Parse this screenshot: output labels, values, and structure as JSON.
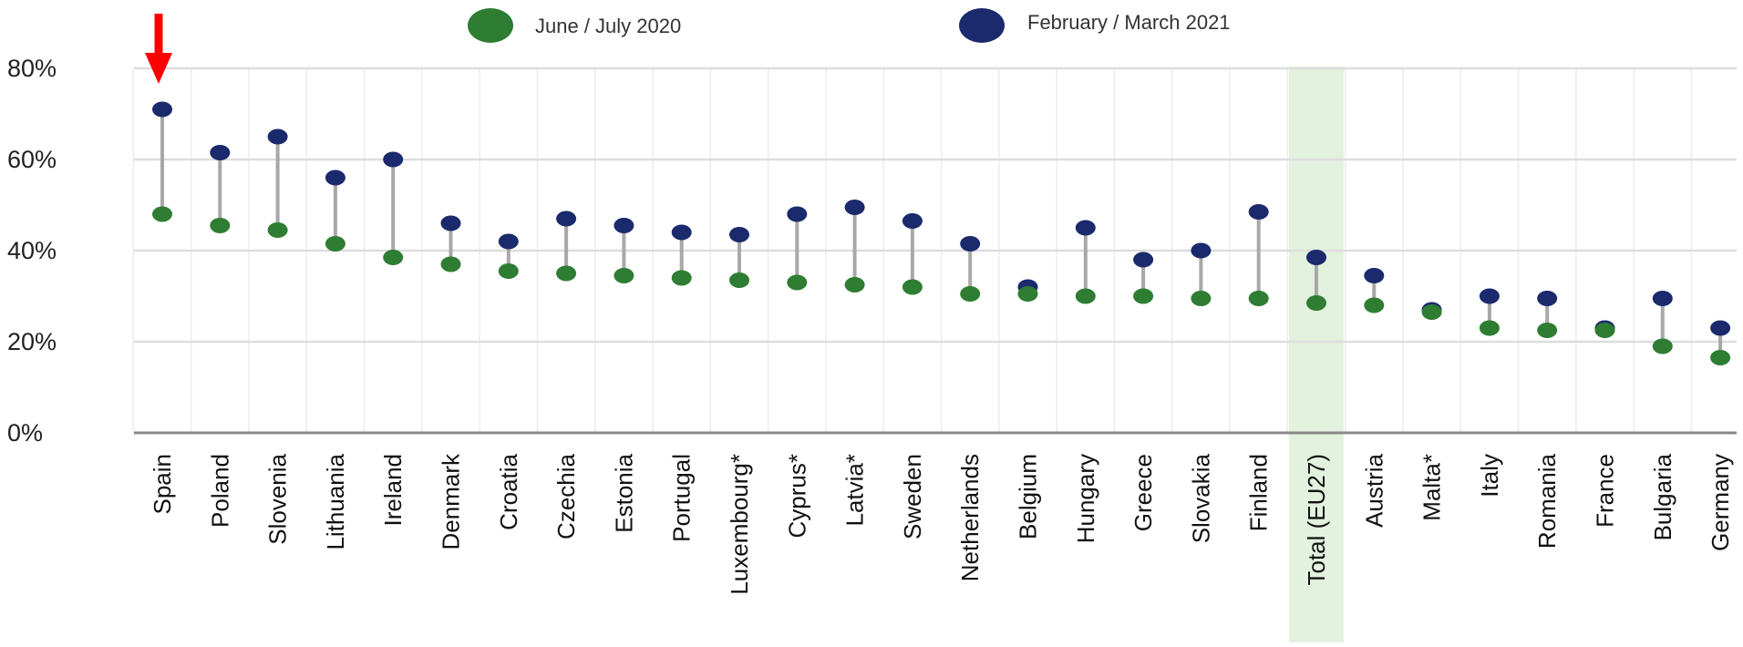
{
  "chart_data": {
    "type": "dumbbell",
    "title": "",
    "xlabel": "",
    "ylabel": "",
    "ylim": [
      0,
      80
    ],
    "y_ticks": [
      "0%",
      "20%",
      "40%",
      "60%",
      "80%"
    ],
    "y_tick_values": [
      0,
      20,
      40,
      60,
      80
    ],
    "grid": true,
    "legend_position": "top",
    "highlighted_category": "Total (EU27)",
    "marked_category": "Spain",
    "categories": [
      "Spain",
      "Poland",
      "Slovenia",
      "Lithuania",
      "Ireland",
      "Denmark",
      "Croatia",
      "Czechia",
      "Estonia",
      "Portugal",
      "Luxembourg*",
      "Cyprus*",
      "Latvia*",
      "Sweden",
      "Netherlands",
      "Belgium",
      "Hungary",
      "Greece",
      "Slovakia",
      "Finland",
      "Total (EU27)",
      "Austria",
      "Malta*",
      "Italy",
      "Romania",
      "France",
      "Bulgaria",
      "Germany"
    ],
    "series": [
      {
        "name": "June / July 2020",
        "color": "#2e7d32",
        "values": [
          48,
          45.5,
          44.5,
          41.5,
          38.5,
          37,
          35.5,
          35,
          34.5,
          34,
          33.5,
          33,
          32.5,
          32,
          30.5,
          30.5,
          30,
          30,
          29.5,
          29.5,
          28.5,
          28,
          26.5,
          23,
          22.5,
          22.5,
          19,
          16.5
        ]
      },
      {
        "name": "February / March 2021",
        "color": "#1a2a6c",
        "values": [
          71,
          61.5,
          65,
          56,
          60,
          46,
          42,
          47,
          45.5,
          44,
          43.5,
          48,
          49.5,
          46.5,
          41.5,
          32,
          45,
          38,
          40,
          48.5,
          38.5,
          34.5,
          27,
          30,
          29.5,
          23,
          29.5,
          23
        ]
      }
    ],
    "colors": {
      "connector": "#a8a8a8",
      "grid": "#dddddd",
      "highlight_band": "#e3f1df",
      "arrow": "#ff0000",
      "axis": "#888888"
    }
  }
}
